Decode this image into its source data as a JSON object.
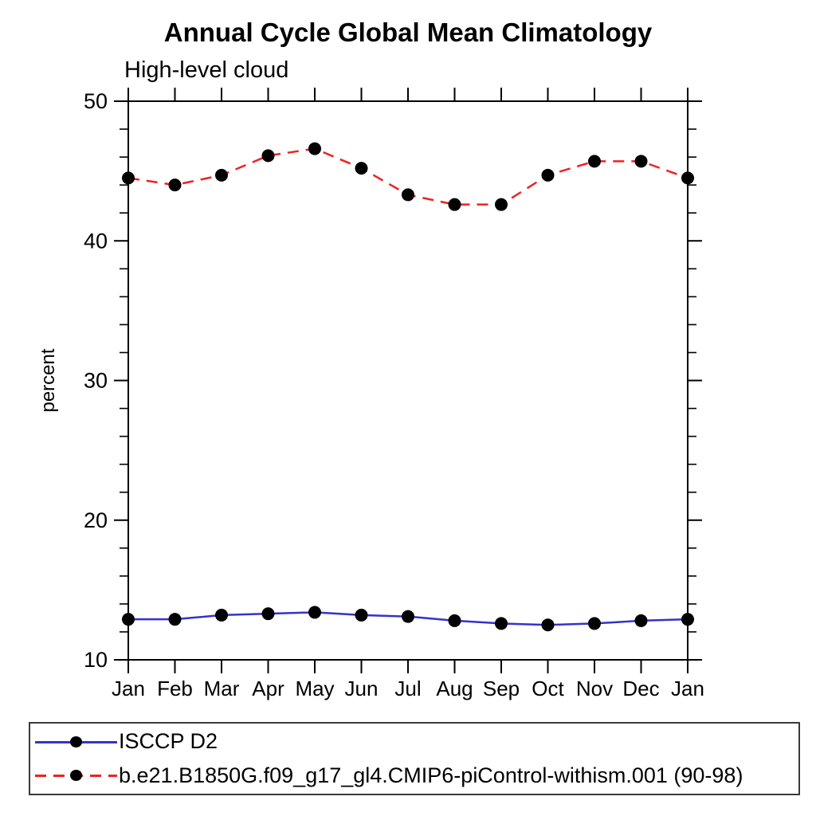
{
  "title": "Annual Cycle Global Mean Climatology",
  "subtitle": "High-level cloud",
  "legend": {
    "items": [
      {
        "label": "ISCCP D2",
        "color": "#3333cc",
        "style": "solid",
        "marker": "black-dot"
      },
      {
        "label": "b.e21.B1850G.f09_g17_gl4.CMIP6-piControl-withism.001 (90-98)",
        "color": "#ee2222",
        "style": "dashed",
        "marker": "black-dot"
      }
    ]
  },
  "chart_data": {
    "type": "line",
    "title": "Annual Cycle Global Mean Climatology",
    "subtitle": "High-level cloud",
    "ylabel": "percent",
    "xlabel": "",
    "categories": [
      "Jan",
      "Feb",
      "Mar",
      "Apr",
      "May",
      "Jun",
      "Jul",
      "Aug",
      "Sep",
      "Oct",
      "Nov",
      "Dec",
      "Jan"
    ],
    "series": [
      {
        "name": "ISCCP D2",
        "color": "#3333cc",
        "line_style": "solid",
        "marker": "circle",
        "marker_color": "#000000",
        "values": [
          12.9,
          12.9,
          13.2,
          13.3,
          13.4,
          13.2,
          13.1,
          12.8,
          12.6,
          12.5,
          12.6,
          12.8,
          12.9
        ]
      },
      {
        "name": "b.e21.B1850G.f09_g17_gl4.CMIP6-piControl-withism.001 (90-98)",
        "color": "#ee2222",
        "line_style": "dashed",
        "marker": "circle",
        "marker_color": "#000000",
        "values": [
          44.5,
          44.0,
          44.7,
          46.1,
          46.6,
          45.2,
          43.3,
          42.6,
          42.6,
          44.7,
          45.7,
          45.7,
          44.5
        ]
      }
    ],
    "ylim": [
      10,
      50
    ],
    "yticks": [
      10,
      20,
      30,
      40,
      50
    ],
    "yminor_step": 2,
    "grid": false,
    "legend_position": "bottom",
    "axis_color": "#000000"
  }
}
